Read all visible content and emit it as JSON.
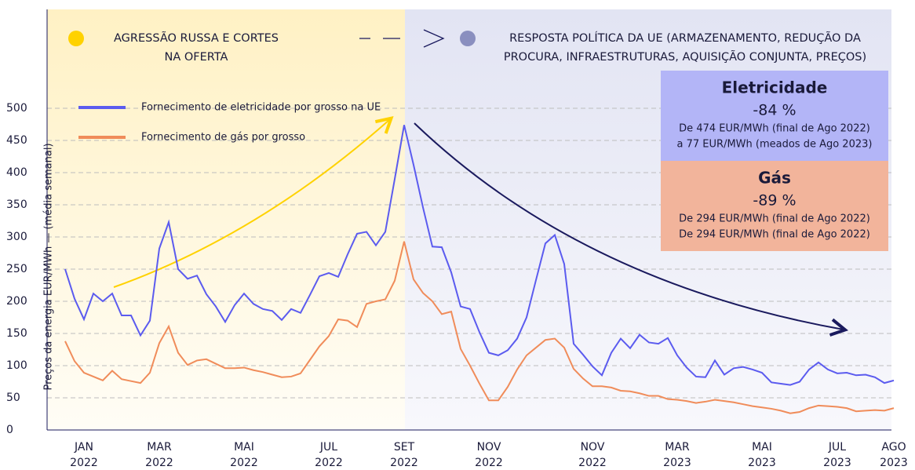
{
  "chart_data": {
    "type": "line",
    "ylabel": "Preços da energia EUR/MWh — (média semanal)",
    "ylim": [
      0,
      500
    ],
    "yticks": [
      0,
      50,
      100,
      150,
      200,
      250,
      300,
      350,
      400,
      450,
      500
    ],
    "grid": true,
    "legend_position": "upper left",
    "categories": [
      null,
      null,
      "JAN 2022",
      null,
      null,
      null,
      null,
      null,
      null,
      null,
      "MAR 2022",
      null,
      null,
      null,
      null,
      null,
      null,
      null,
      null,
      "MAI 2022",
      null,
      null,
      null,
      null,
      null,
      null,
      null,
      null,
      "JUL 2022",
      null,
      null,
      null,
      null,
      null,
      null,
      null,
      "SET 2022",
      null,
      null,
      null,
      null,
      null,
      null,
      null,
      null,
      "NOV 2022",
      null,
      null,
      null,
      null,
      null,
      null,
      null,
      null,
      null,
      null,
      "NOV 2022",
      null,
      null,
      null,
      null,
      null,
      null,
      null,
      null,
      "MAR 2023",
      null,
      null,
      null,
      null,
      null,
      null,
      null,
      null,
      "MAI 2023",
      null,
      null,
      null,
      null,
      null,
      null,
      null,
      "JUL 2023",
      null,
      null,
      null,
      null,
      null,
      "AGO 2023"
    ],
    "series": [
      {
        "name": "Fornecimento de eletricidade por grosso na UE",
        "color": "#5b5bef",
        "values": [
          250,
          204,
          172,
          212,
          200,
          212,
          178,
          178,
          147,
          170,
          282,
          323,
          250,
          235,
          240,
          211,
          192,
          168,
          194,
          212,
          196,
          188,
          185,
          171,
          188,
          182,
          210,
          239,
          244,
          238,
          273,
          305,
          308,
          287,
          308,
          390,
          474,
          412,
          346,
          285,
          284,
          245,
          192,
          188,
          152,
          120,
          116,
          124,
          142,
          175,
          233,
          290,
          303,
          258,
          134,
          117,
          99,
          85,
          120,
          142,
          127,
          148,
          136,
          134,
          143,
          116,
          97,
          83,
          82,
          108,
          86,
          96,
          98,
          94,
          89,
          74,
          72,
          70,
          75,
          94,
          105,
          94,
          88,
          89,
          85,
          86,
          82,
          73,
          77
        ]
      },
      {
        "name": "Fornecimento de gás por grosso",
        "color": "#f08c5a",
        "values": [
          138,
          107,
          89,
          83,
          77,
          92,
          79,
          76,
          73,
          89,
          135,
          161,
          120,
          101,
          108,
          110,
          103,
          96,
          96,
          97,
          93,
          90,
          86,
          82,
          83,
          88,
          109,
          130,
          146,
          172,
          170,
          160,
          196,
          200,
          203,
          232,
          293,
          234,
          213,
          200,
          180,
          184,
          126,
          100,
          72,
          46,
          46,
          67,
          94,
          116,
          128,
          140,
          142,
          128,
          95,
          80,
          68,
          68,
          66,
          61,
          60,
          57,
          53,
          53,
          48,
          47,
          45,
          42,
          44,
          47,
          45,
          43,
          40,
          37,
          35,
          33,
          30,
          26,
          28,
          34,
          38,
          37,
          36,
          34,
          29,
          30,
          31,
          30,
          34
        ]
      }
    ],
    "phases": [
      {
        "lines": [
          "AGRESSÃO RUSSA E CORTES",
          "NA OFERTA"
        ],
        "color": "#ffd200"
      },
      {
        "lines": [
          "RESPOSTA POLÍTICA DA UE (ARMAZENAMENTO, REDUÇÃO DA",
          "PROCURA, INFRAESTRUTURAS, AQUISIÇÃO CONJUNTA, PREÇOS)"
        ],
        "color": "#8a8fbf"
      }
    ],
    "info_boxes": [
      {
        "title": "Eletricidade",
        "change": "-84 %",
        "lines": [
          "De 474 EUR/MWh (final de Ago 2022)",
          "a 77 EUR/MWh (meados de Ago 2023)"
        ],
        "color": "#b3b5f7"
      },
      {
        "title": "Gás",
        "change": "-89 %",
        "lines": [
          "De 294 EUR/MWh (final de Ago 2022)",
          "De 294 EUR/MWh (final de Ago 2022)"
        ],
        "color": "#f2b49b"
      }
    ]
  }
}
